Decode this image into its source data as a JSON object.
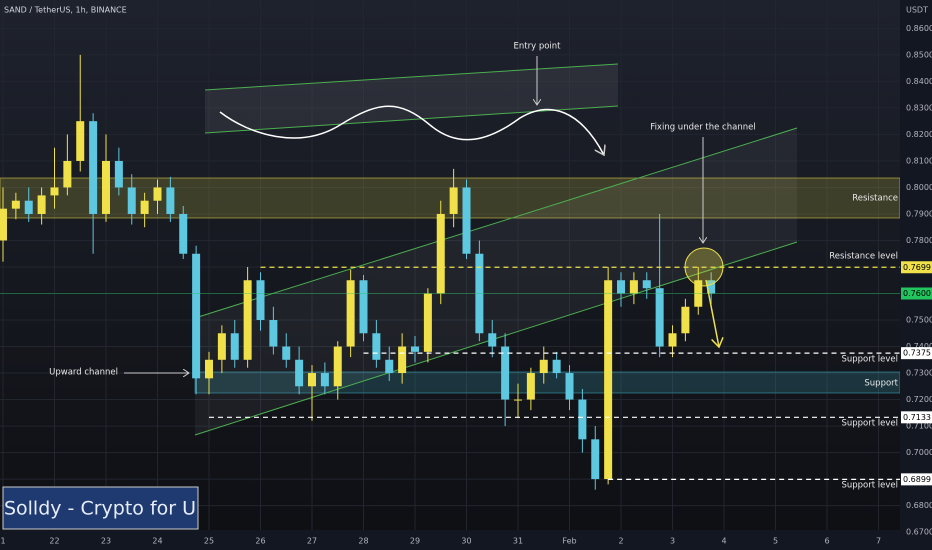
{
  "chart_data": {
    "type": "candlestick",
    "title": "SAND / TetherUS, 1h, BINANCE",
    "y_unit": "USDT",
    "xlim": [
      -0.058,
      17.417
    ],
    "ylim": [
      0.6708,
      0.8707
    ],
    "xticks": [
      {
        "value": 0,
        "label": "1"
      },
      {
        "value": 1,
        "label": "22"
      },
      {
        "value": 2,
        "label": "23"
      },
      {
        "value": 3,
        "label": "24"
      },
      {
        "value": 4,
        "label": "25"
      },
      {
        "value": 5,
        "label": "26"
      },
      {
        "value": 6,
        "label": "27"
      },
      {
        "value": 7,
        "label": "28"
      },
      {
        "value": 8,
        "label": "29"
      },
      {
        "value": 9,
        "label": "30"
      },
      {
        "value": 10,
        "label": "31"
      },
      {
        "value": 11,
        "label": "Feb"
      },
      {
        "value": 12,
        "label": "2"
      },
      {
        "value": 13,
        "label": "3"
      },
      {
        "value": 14,
        "label": "4"
      },
      {
        "value": 15,
        "label": "5"
      },
      {
        "value": 16,
        "label": "6"
      },
      {
        "value": 17,
        "label": "7"
      }
    ],
    "yticks": [
      {
        "value": 0.86,
        "label": "0.8600"
      },
      {
        "value": 0.85,
        "label": "0.8500"
      },
      {
        "value": 0.84,
        "label": "0.8400"
      },
      {
        "value": 0.83,
        "label": "0.8300"
      },
      {
        "value": 0.82,
        "label": "0.8200"
      },
      {
        "value": 0.81,
        "label": "0.8100"
      },
      {
        "value": 0.8,
        "label": "0.8000"
      },
      {
        "value": 0.79,
        "label": "0.7900"
      },
      {
        "value": 0.78,
        "label": "0.7800"
      },
      {
        "value": 0.77,
        "label": "0.7700"
      },
      {
        "value": 0.76,
        "label": "0.7600"
      },
      {
        "value": 0.75,
        "label": "0.7500"
      },
      {
        "value": 0.74,
        "label": "0.7400"
      },
      {
        "value": 0.73,
        "label": "0.7300"
      },
      {
        "value": 0.72,
        "label": "0.7200"
      },
      {
        "value": 0.71,
        "label": "0.7100"
      },
      {
        "value": 0.7,
        "label": "0.7000"
      },
      {
        "value": 0.69,
        "label": "0.6900"
      },
      {
        "value": 0.68,
        "label": "0.6800"
      },
      {
        "value": 0.67,
        "label": "0.6700"
      }
    ],
    "up_color": "#f0e14a",
    "down_color": "#5ec8e0",
    "x": [
      0,
      0.25,
      0.5,
      0.75,
      1,
      1.25,
      1.5,
      1.75,
      2,
      2.25,
      2.5,
      2.75,
      3,
      3.25,
      3.5,
      3.75,
      4,
      4.25,
      4.5,
      4.75,
      5,
      5.25,
      5.5,
      5.75,
      6,
      6.25,
      6.5,
      6.75,
      7,
      7.25,
      7.5,
      7.75,
      8,
      8.25,
      8.5,
      8.75,
      9,
      9.25,
      9.5,
      9.75,
      10,
      10.25,
      10.5,
      10.75,
      11,
      11.25,
      11.5,
      11.75,
      12,
      12.25,
      12.5,
      12.75,
      13,
      13.25,
      13.5,
      13.75
    ],
    "open": [
      0.78,
      0.792,
      0.795,
      0.79,
      0.797,
      0.8,
      0.81,
      0.825,
      0.79,
      0.81,
      0.8,
      0.79,
      0.795,
      0.8,
      0.79,
      0.775,
      0.728,
      0.735,
      0.745,
      0.735,
      0.765,
      0.75,
      0.74,
      0.735,
      0.725,
      0.73,
      0.725,
      0.74,
      0.765,
      0.745,
      0.735,
      0.73,
      0.74,
      0.738,
      0.76,
      0.79,
      0.8,
      0.775,
      0.745,
      0.74,
      0.72,
      0.72,
      0.73,
      0.735,
      0.73,
      0.72,
      0.705,
      0.69,
      0.765,
      0.76,
      0.765,
      0.762,
      0.74,
      0.745,
      0.755,
      0.765
    ],
    "high": [
      0.8,
      0.798,
      0.8,
      0.8,
      0.815,
      0.82,
      0.85,
      0.828,
      0.82,
      0.815,
      0.805,
      0.798,
      0.803,
      0.804,
      0.793,
      0.778,
      0.738,
      0.748,
      0.75,
      0.77,
      0.768,
      0.755,
      0.745,
      0.74,
      0.733,
      0.734,
      0.742,
      0.769,
      0.767,
      0.75,
      0.74,
      0.745,
      0.744,
      0.762,
      0.795,
      0.807,
      0.803,
      0.78,
      0.75,
      0.745,
      0.726,
      0.732,
      0.74,
      0.738,
      0.733,
      0.724,
      0.71,
      0.77,
      0.768,
      0.768,
      0.768,
      0.79,
      0.748,
      0.758,
      0.77,
      0.768
    ],
    "low": [
      0.772,
      0.788,
      0.787,
      0.786,
      0.792,
      0.797,
      0.806,
      0.775,
      0.787,
      0.797,
      0.786,
      0.785,
      0.79,
      0.787,
      0.773,
      0.722,
      0.722,
      0.73,
      0.732,
      0.732,
      0.746,
      0.737,
      0.732,
      0.722,
      0.712,
      0.722,
      0.72,
      0.736,
      0.742,
      0.732,
      0.727,
      0.726,
      0.734,
      0.734,
      0.756,
      0.785,
      0.773,
      0.742,
      0.736,
      0.71,
      0.713,
      0.716,
      0.726,
      0.728,
      0.716,
      0.7,
      0.686,
      0.688,
      0.755,
      0.756,
      0.758,
      0.736,
      0.736,
      0.742,
      0.752,
      0.756
    ],
    "close": [
      0.792,
      0.795,
      0.79,
      0.797,
      0.8,
      0.81,
      0.825,
      0.79,
      0.81,
      0.8,
      0.79,
      0.795,
      0.8,
      0.79,
      0.775,
      0.728,
      0.735,
      0.745,
      0.735,
      0.765,
      0.75,
      0.74,
      0.735,
      0.725,
      0.73,
      0.725,
      0.74,
      0.765,
      0.745,
      0.735,
      0.73,
      0.74,
      0.738,
      0.76,
      0.79,
      0.8,
      0.775,
      0.745,
      0.74,
      0.72,
      0.72,
      0.73,
      0.735,
      0.73,
      0.72,
      0.705,
      0.69,
      0.765,
      0.76,
      0.765,
      0.762,
      0.74,
      0.745,
      0.755,
      0.765,
      0.76
    ],
    "price_levels": [
      {
        "value": 0.7699,
        "label": "0.7699",
        "color": "#f0e14a",
        "start": 5
      },
      {
        "value": 0.76,
        "label": "0.7600",
        "color": "#22c55e"
      },
      {
        "value": 0.7375,
        "label": "0.7375",
        "color": "#ffffff",
        "start": 7
      },
      {
        "value": 0.7133,
        "label": "0.7133",
        "color": "#ffffff",
        "start": 4
      },
      {
        "value": 0.6899,
        "label": "0.6899",
        "color": "#ffffff",
        "start": 11.75
      }
    ],
    "annotations": {
      "entry": "Entry point",
      "fixing": "Fixing under the channel",
      "resistance_zone": "Resistance",
      "resistance_level": "Resistance level",
      "support_level_1": "Support level",
      "support_zone": "Support",
      "support_level_2": "Support level",
      "support_level_3": "Support level",
      "channel": "Upward channel"
    },
    "watermark": "Solldy - Crypto for U"
  }
}
